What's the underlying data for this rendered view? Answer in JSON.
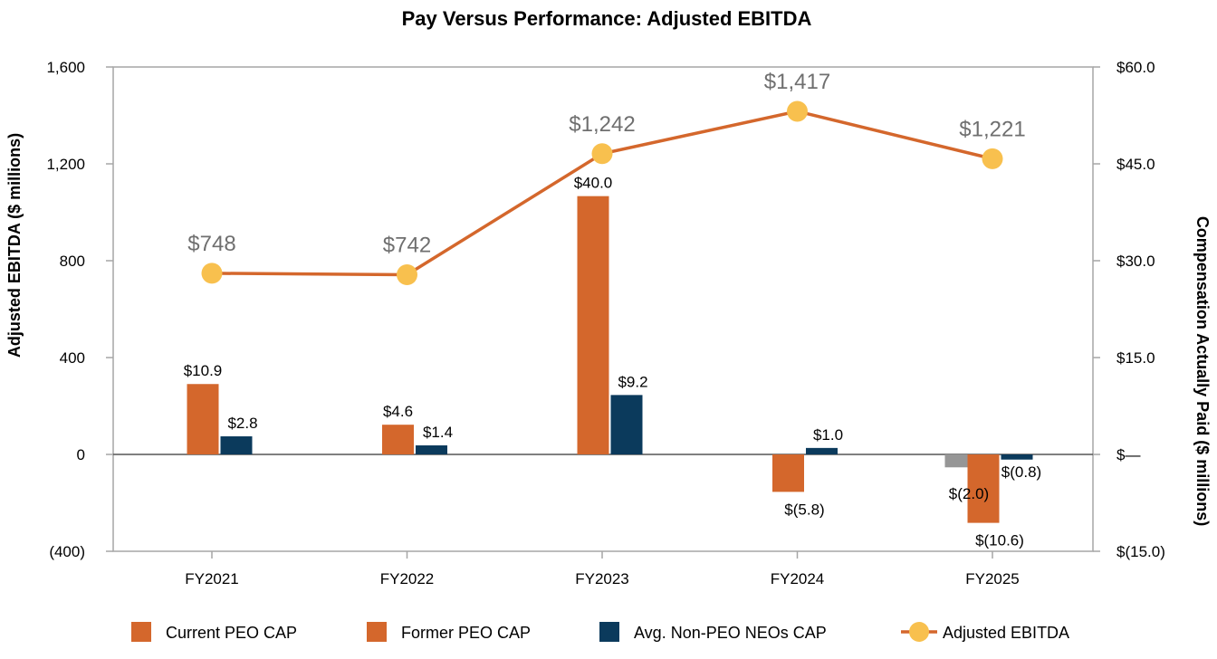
{
  "chart_data": {
    "type": "bar",
    "title": "Pay Versus Performance: Adjusted EBITDA",
    "categories": [
      "FY2021",
      "FY2022",
      "FY2023",
      "FY2024",
      "FY2025"
    ],
    "y_left": {
      "label": "Adjusted EBITDA ($ millions)",
      "range": [
        -400,
        1600
      ],
      "ticks": [
        -400,
        0,
        400,
        800,
        1200,
        1600
      ],
      "tick_labels": [
        "(400)",
        "0",
        "400",
        "800",
        "1,200",
        "1,600"
      ]
    },
    "y_right": {
      "label": "Compensation Actually Paid ($ millions)",
      "range": [
        -15,
        60
      ],
      "ticks": [
        -15,
        0,
        15,
        30,
        45,
        60
      ],
      "tick_labels": [
        "$(15.0)",
        "$—",
        "$15.0",
        "$30.0",
        "$45.0",
        "$60.0"
      ]
    },
    "series": [
      {
        "name": "Current PEO CAP",
        "kind": "bar",
        "axis": "right",
        "color": "#d4672c",
        "values": [
          null,
          null,
          null,
          null,
          -2.0
        ],
        "labels": [
          "",
          "",
          "",
          "",
          "$(2.0)"
        ]
      },
      {
        "name": "Former PEO CAP",
        "kind": "bar",
        "axis": "right",
        "color": "#d4672c",
        "values": [
          10.9,
          4.6,
          40.0,
          -5.8,
          -10.6
        ],
        "labels": [
          "$10.9",
          "$4.6",
          "$40.0",
          "$(5.8)",
          "$(10.6)"
        ]
      },
      {
        "name": "Avg. Non-PEO NEOs CAP",
        "kind": "bar",
        "axis": "right",
        "color": "#0b3a5c",
        "values": [
          2.8,
          1.4,
          9.2,
          1.0,
          -0.8
        ],
        "labels": [
          "$2.8",
          "$1.4",
          "$9.2",
          "$1.0",
          "$(0.8)"
        ]
      },
      {
        "name": "Adjusted EBITDA",
        "kind": "line",
        "axis": "left",
        "color": "#d4672c",
        "marker_color": "#f8c04e",
        "values": [
          748,
          742,
          1242,
          1417,
          1221
        ],
        "labels": [
          "$748",
          "$742",
          "$1,242",
          "$1,417",
          "$1,221"
        ]
      }
    ],
    "current_peo_fy2025_bar_color": "#969696",
    "legend": {
      "position": "bottom",
      "items": [
        "Current PEO CAP",
        "Former PEO CAP",
        "Avg. Non-PEO NEOs CAP",
        "Adjusted EBITDA"
      ]
    }
  }
}
